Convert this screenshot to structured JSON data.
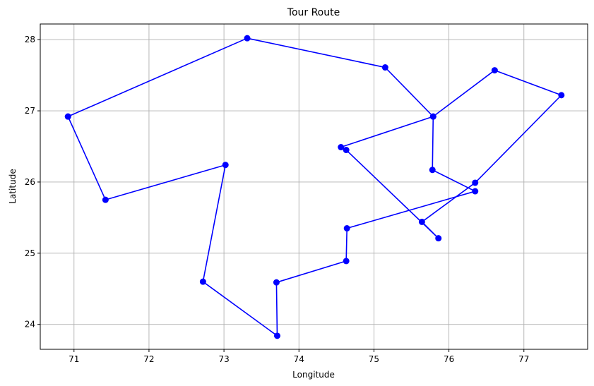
{
  "chart_data": {
    "type": "line",
    "title": "Tour Route",
    "xlabel": "Longitude",
    "ylabel": "Latitude",
    "xlim": [
      70.55,
      77.85
    ],
    "ylim": [
      23.65,
      28.22
    ],
    "xticks": [
      71,
      72,
      73,
      74,
      75,
      76,
      77
    ],
    "yticks": [
      24,
      25,
      26,
      27,
      28
    ],
    "grid": true,
    "line_color": "#0000ff",
    "marker_color": "#0000ff",
    "series": [
      {
        "x": [
          70.92,
          71.42,
          73.02,
          72.72,
          73.71,
          73.7,
          74.63,
          74.64,
          76.35,
          75.78,
          75.79,
          76.61,
          77.5,
          76.35,
          75.64,
          75.86,
          74.63,
          74.56,
          75.79,
          75.15,
          73.31,
          70.92
        ],
        "y": [
          26.92,
          25.75,
          26.24,
          24.6,
          23.84,
          24.59,
          24.89,
          25.35,
          25.87,
          26.17,
          26.92,
          27.57,
          27.22,
          25.99,
          25.44,
          25.21,
          26.45,
          26.49,
          26.92,
          27.61,
          28.02,
          26.92
        ]
      }
    ]
  }
}
